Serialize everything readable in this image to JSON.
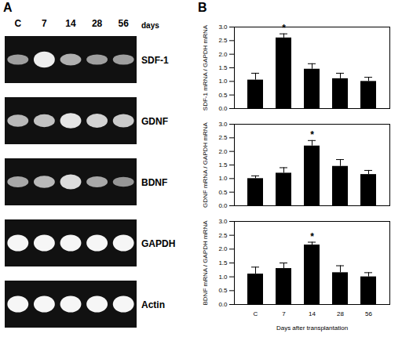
{
  "gel": {
    "letter": "A",
    "lanes": [
      "C",
      "7",
      "14",
      "28",
      "56"
    ],
    "lane_unit": "days",
    "rows": [
      {
        "label": "SDF-1",
        "intensity": [
          0.45,
          0.9,
          0.55,
          0.45,
          0.45
        ]
      },
      {
        "label": "GDNF",
        "intensity": [
          0.6,
          0.65,
          0.85,
          0.75,
          0.7
        ]
      },
      {
        "label": "BDNF",
        "intensity": [
          0.5,
          0.6,
          0.8,
          0.5,
          0.4
        ]
      },
      {
        "label": "GAPDH",
        "intensity": [
          0.95,
          0.95,
          0.95,
          0.95,
          0.95
        ]
      },
      {
        "label": "Actin",
        "intensity": [
          0.95,
          0.95,
          0.95,
          0.95,
          0.95
        ]
      }
    ]
  },
  "chart_letter": "B",
  "chart_data": [
    {
      "type": "bar",
      "y_label": "SDF-1 mRNA / GAPDH mRNA",
      "categories": [
        "C",
        "7",
        "14",
        "28",
        "56"
      ],
      "values": [
        1.05,
        2.6,
        1.45,
        1.1,
        1.0
      ],
      "errors": [
        0.25,
        0.15,
        0.2,
        0.2,
        0.15
      ],
      "color": "#000000",
      "ylim": [
        0,
        3
      ],
      "yticks": [
        {
          "value": 0,
          "label": "0.0"
        },
        {
          "value": 0.5,
          "label": "0.5"
        },
        {
          "value": 1,
          "label": "1.0"
        },
        {
          "value": 1.5,
          "label": "1.5"
        },
        {
          "value": 2,
          "label": "2.0"
        },
        {
          "value": 2.5,
          "label": "2.5"
        },
        {
          "value": 3,
          "label": "3.0"
        }
      ],
      "tick_labels": "y",
      "annotations": [
        {
          "category": "7",
          "text": "*"
        }
      ]
    },
    {
      "type": "bar",
      "y_label": "GDNF mRNA / GAPDH mRNA",
      "categories": [
        "C",
        "7",
        "14",
        "28",
        "56"
      ],
      "values": [
        1.0,
        1.2,
        2.2,
        1.45,
        1.15
      ],
      "errors": [
        0.1,
        0.2,
        0.2,
        0.25,
        0.15
      ],
      "color": "#000000",
      "ylim": [
        0,
        3
      ],
      "yticks": [
        {
          "value": 0,
          "label": "0.0"
        },
        {
          "value": 0.5,
          "label": "0.5"
        },
        {
          "value": 1,
          "label": "1.0"
        },
        {
          "value": 1.5,
          "label": "1.5"
        },
        {
          "value": 2,
          "label": "2.0"
        },
        {
          "value": 2.5,
          "label": "2.5"
        },
        {
          "value": 3,
          "label": "3.0"
        }
      ],
      "tick_labels": "y",
      "annotations": [
        {
          "category": "14",
          "text": "*"
        }
      ]
    },
    {
      "type": "bar",
      "y_label": "BDNF mRNA / GAPDH mRNA",
      "x_label": "Days after transplantation",
      "categories": [
        "C",
        "7",
        "14",
        "28",
        "56"
      ],
      "values": [
        1.1,
        1.3,
        2.15,
        1.15,
        1.0
      ],
      "errors": [
        0.25,
        0.2,
        0.1,
        0.25,
        0.15
      ],
      "color": "#000000",
      "ylim": [
        0,
        3
      ],
      "yticks": [
        {
          "value": 0,
          "label": "0.0"
        },
        {
          "value": 0.5,
          "label": "0.5"
        },
        {
          "value": 1,
          "label": "1.0"
        },
        {
          "value": 1.5,
          "label": "1.5"
        },
        {
          "value": 2,
          "label": "2.0"
        },
        {
          "value": 2.5,
          "label": "2.5"
        },
        {
          "value": 3,
          "label": "3.0"
        }
      ],
      "annotations": [
        {
          "category": "14",
          "text": "*"
        }
      ]
    }
  ]
}
